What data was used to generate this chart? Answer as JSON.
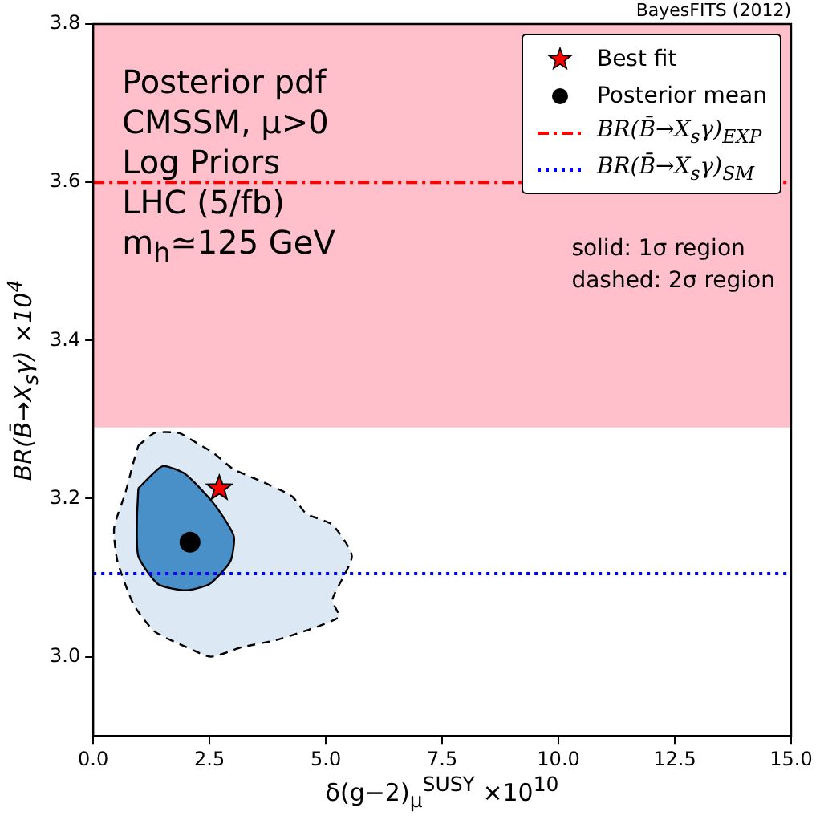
{
  "chart_data": {
    "type": "area",
    "annotations": [
      "BayesFITS (2012)",
      "Posterior pdf",
      "CMSSM, μ>0",
      "Log Priors",
      "LHC (5/fb)",
      "m$_{h}$≃125 GeV",
      "solid: 1σ region",
      "dashed: 2σ region"
    ],
    "xlabel": "δ(g−2)$_{μ}$$^{SUSY}$ ×10$^{10}$",
    "ylabel": "BR(B̄→X$_{s}$γ) ×10$^{4}$",
    "series": [
      {
        "color": "#dce9f5",
        "line_style": "dashed",
        "x": [
          0.97,
          1.32,
          1.84,
          2.15,
          2.6,
          3.02,
          3.65,
          4.27,
          4.58,
          5.14,
          5.56,
          5.14,
          5.28,
          3.99,
          3.19,
          2.53,
          2.01,
          1.32,
          0.87,
          0.52,
          0.45,
          0.69,
          0.87
        ],
        "values": [
          3.267,
          3.283,
          3.283,
          3.273,
          3.257,
          3.237,
          3.221,
          3.203,
          3.181,
          3.167,
          3.127,
          3.072,
          3.05,
          3.022,
          3.012,
          3.0,
          3.012,
          3.032,
          3.066,
          3.121,
          3.163,
          3.207,
          3.247
        ]
      },
      {
        "color": "#4a90c8",
        "line_style": "solid",
        "x": [
          0.97,
          1.49,
          1.98,
          2.6,
          3.02,
          2.95,
          2.5,
          1.98,
          1.39,
          0.97,
          0.94
        ],
        "values": [
          3.213,
          3.241,
          3.231,
          3.193,
          3.153,
          3.121,
          3.092,
          3.084,
          3.092,
          3.127,
          3.173
        ]
      },
      {
        "type": "scatter",
        "name": "Best fit",
        "color": "#ff0000",
        "marker": "star",
        "x": [
          2.71
        ],
        "values": [
          3.213
        ]
      },
      {
        "type": "scatter",
        "name": "Posterior mean",
        "color": "#000000",
        "marker": "circle",
        "x": [
          2.08
        ],
        "values": [
          3.145
        ]
      }
    ],
    "bands": [
      {
        "axis": "y",
        "from": 3.29,
        "to": 3.8,
        "color": "#ffc0cb"
      }
    ],
    "ref_lines": [
      {
        "axis": "y",
        "value": 3.6,
        "label": "BR(B̄→X$_{s}$γ)$_{EXP}$",
        "color": "#ff0000",
        "line_style": "dashed"
      },
      {
        "axis": "y",
        "value": 3.105,
        "label": "BR(B̄→X$_{s}$γ)$_{SM}$",
        "color": "#0000ff",
        "line_style": "dotted"
      }
    ],
    "xlim": [
      0,
      15
    ],
    "xticks": [
      {
        "value": 0,
        "label": "0.0"
      },
      2.5,
      {
        "value": 5,
        "label": "5.0"
      },
      7.5,
      {
        "value": 10,
        "label": "10.0"
      },
      12.5,
      {
        "value": 15,
        "label": "15.0"
      }
    ],
    "ylim": [
      2.9,
      3.8
    ],
    "yticks": [
      {
        "value": 3,
        "label": "3.0"
      },
      3.2,
      3.4,
      3.6,
      3.8
    ],
    "legend": "top right"
  }
}
